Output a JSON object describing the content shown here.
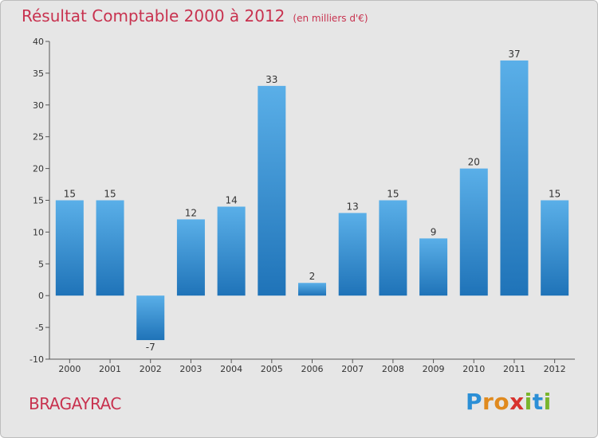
{
  "header": {
    "title": "Résultat Comptable 2000 à 2012",
    "subtitle": "(en milliers d'€)"
  },
  "footer": {
    "town": "BRAGAYRAC",
    "logo_letters": [
      "P",
      "r",
      "o",
      "x",
      "i",
      "t",
      "i"
    ],
    "logo_colors": [
      "#2b8fd6",
      "#e08a1e",
      "#e08a1e",
      "#d8322e",
      "#7ab52d",
      "#2b8fd6",
      "#7ab52d"
    ]
  },
  "chart_data": {
    "type": "bar",
    "title": "Résultat Comptable 2000 à 2012",
    "subtitle": "(en milliers d'€)",
    "xlabel": "",
    "ylabel": "",
    "categories": [
      "2000",
      "2001",
      "2002",
      "2003",
      "2004",
      "2005",
      "2006",
      "2007",
      "2008",
      "2009",
      "2010",
      "2011",
      "2012"
    ],
    "values": [
      15,
      15,
      -7,
      12,
      14,
      33,
      2,
      13,
      15,
      9,
      20,
      37,
      15
    ],
    "ylim": [
      -10,
      40
    ],
    "yticks": [
      -10,
      -5,
      0,
      5,
      10,
      15,
      20,
      25,
      30,
      35,
      40
    ],
    "grid": false,
    "colors": {
      "bar_top": "#5aafe8",
      "bar_bottom": "#1f73b8",
      "axis": "#555555",
      "title": "#c8324f"
    }
  }
}
